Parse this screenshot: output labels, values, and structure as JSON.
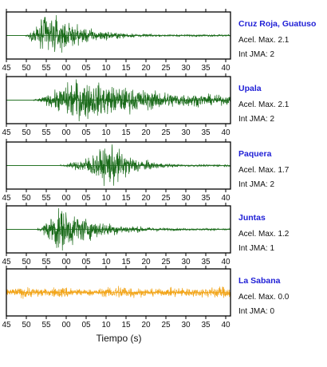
{
  "chart_data": {
    "type": "line",
    "title": "",
    "xlabel": "Tiempo (s)",
    "ylabel": "",
    "tick_labels": [
      "45",
      "50",
      "55",
      "00",
      "05",
      "10",
      "15",
      "20",
      "25",
      "30",
      "35",
      "40"
    ],
    "panels": [
      {
        "station": "Cruz Roja, Guatuso",
        "acel_label": "Acel. Max.",
        "acel_value": "2.1",
        "jma_label": "Int JMA:",
        "jma_value": "2",
        "color": "#1a6b1a",
        "onset_s": 5,
        "peak_s": 10,
        "decay_s": 9,
        "amplitude": 1.0,
        "noise": 0.0,
        "show_ticks": true
      },
      {
        "station": "Upala",
        "acel_label": "Acel. Max.",
        "acel_value": "2.1",
        "jma_label": "Int JMA:",
        "jma_value": "2",
        "color": "#1a6b1a",
        "onset_s": 7,
        "peak_s": 17,
        "decay_s": 25,
        "amplitude": 0.9,
        "noise": 0.0,
        "show_ticks": true
      },
      {
        "station": "Paquera",
        "acel_label": "Acel. Max.",
        "acel_value": "1.7",
        "jma_label": "Int JMA:",
        "jma_value": "2",
        "color": "#1a6b1a",
        "onset_s": 14,
        "peak_s": 27,
        "decay_s": 6,
        "amplitude": 0.95,
        "noise": 0.02,
        "show_ticks": true
      },
      {
        "station": "Juntas",
        "acel_label": "Acel. Max.",
        "acel_value": "1.2",
        "jma_label": "Int JMA:",
        "jma_value": "1",
        "color": "#1a6b1a",
        "onset_s": 8,
        "peak_s": 13,
        "decay_s": 10,
        "amplitude": 1.0,
        "noise": 0.0,
        "show_ticks": true
      },
      {
        "station": "La Sabana",
        "acel_label": "Acel. Max.",
        "acel_value": "0.0",
        "jma_label": "Int JMA:",
        "jma_value": "0",
        "color": "#f2a51a",
        "onset_s": 0,
        "peak_s": 0,
        "decay_s": 0,
        "amplitude": 0.35,
        "noise": 1.0,
        "show_ticks": true
      }
    ],
    "x_range": [
      "45",
      "43"
    ],
    "grid": false,
    "legend": "none"
  }
}
